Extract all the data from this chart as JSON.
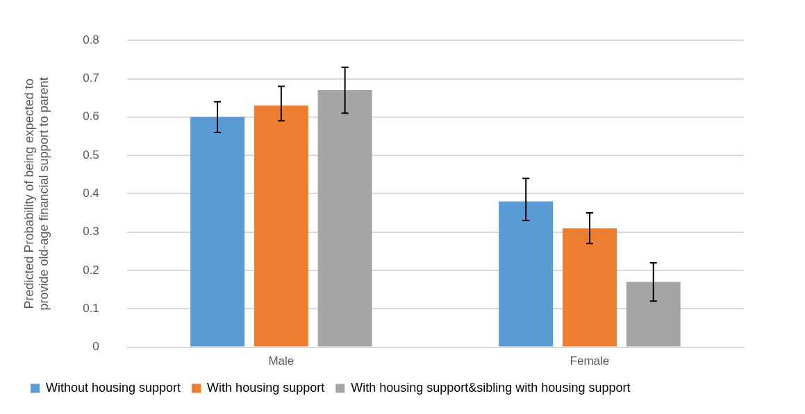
{
  "chart_data": {
    "type": "bar",
    "ylabel": "Predicted Probability of being expected to provide old-age financial support to parent",
    "categories": [
      "Male",
      "Female"
    ],
    "series": [
      {
        "name": "Without housing support",
        "color": "#5b9bd5",
        "values": [
          0.6,
          0.38
        ],
        "errors": [
          [
            0.56,
            0.64
          ],
          [
            0.33,
            0.44
          ]
        ]
      },
      {
        "name": "With housing support",
        "color": "#ed7d31",
        "values": [
          0.63,
          0.31
        ],
        "errors": [
          [
            0.59,
            0.68
          ],
          [
            0.27,
            0.35
          ]
        ]
      },
      {
        "name": "With housing support&sibling with housing support",
        "color": "#a5a5a5",
        "values": [
          0.67,
          0.17
        ],
        "errors": [
          [
            0.61,
            0.73
          ],
          [
            0.12,
            0.22
          ]
        ]
      }
    ],
    "ylim": [
      0,
      0.8
    ],
    "yticks": [
      0,
      0.1,
      0.2,
      0.3,
      0.4,
      0.5,
      0.6,
      0.7,
      0.8
    ],
    "grid": "y",
    "legend": "bottom"
  }
}
